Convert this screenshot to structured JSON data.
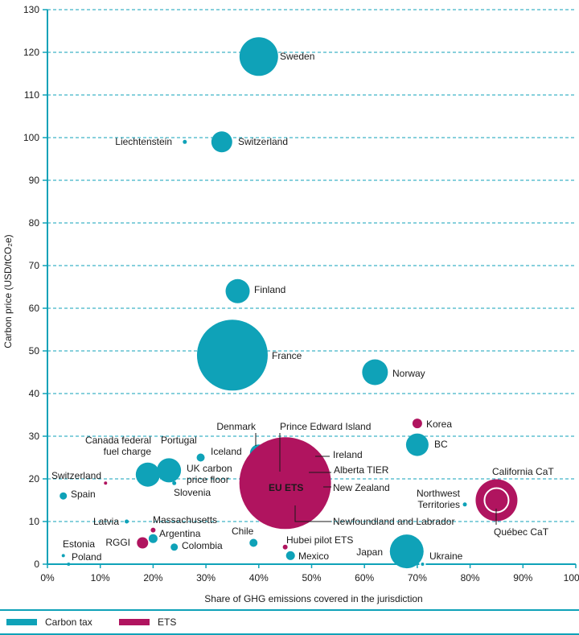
{
  "chart_data": {
    "type": "scatter",
    "xlabel": "Share of GHG emissions covered in the jurisdiction",
    "ylabel": "Carbon price (USD/tCO₂e)",
    "xlim": [
      0,
      100
    ],
    "ylim": [
      0,
      130
    ],
    "x_ticks": [
      "0%",
      "10%",
      "20%",
      "30%",
      "40%",
      "50%",
      "60%",
      "70%",
      "80%",
      "90%",
      "100%"
    ],
    "y_ticks": [
      "0",
      "10",
      "20",
      "30",
      "40",
      "50",
      "60",
      "70",
      "80",
      "90",
      "100",
      "110",
      "120",
      "130"
    ],
    "grid": "horizontal dashed",
    "legend": "bottom",
    "colors": {
      "carbon_tax": "#0fa2b8",
      "ets": "#b0145f",
      "axis": "#0fa2b8"
    },
    "series": [
      {
        "name": "Carbon tax",
        "points": [
          {
            "label": "Sweden",
            "x": 40,
            "y": 119
          },
          {
            "label": "Liechtenstein",
            "x": 26,
            "y": 99
          },
          {
            "label": "Switzerland",
            "x": 33,
            "y": 99
          },
          {
            "label": "Finland",
            "x": 36,
            "y": 64
          },
          {
            "label": "France",
            "x": 35,
            "y": 49
          },
          {
            "label": "Norway",
            "x": 62,
            "y": 45
          },
          {
            "label": "BC",
            "x": 70,
            "y": 28
          },
          {
            "label": "Denmark",
            "x": 40,
            "y": 26
          },
          {
            "label": "Prince Edward Island",
            "x": 44,
            "y": 21
          },
          {
            "label": "Portugal",
            "x": 29,
            "y": 25
          },
          {
            "label": "Iceland",
            "x": 29,
            "y": 25
          },
          {
            "label": "Canada federal fuel charge",
            "x": 19,
            "y": 21
          },
          {
            "label": "UK carbon price floor",
            "x": 23,
            "y": 22
          },
          {
            "label": "Slovenia",
            "x": 24,
            "y": 19
          },
          {
            "label": "Ireland",
            "x": 49,
            "y": 25
          },
          {
            "label": "Alberta TIER",
            "x": 48,
            "y": 21
          },
          {
            "label": "New Zealand",
            "x": 51,
            "y": 14
          },
          {
            "label": "Newfoundland and Labrador",
            "x": 47,
            "y": 14
          },
          {
            "label": "Northwest Territories",
            "x": 79,
            "y": 14
          },
          {
            "label": "Spain",
            "x": 3,
            "y": 16
          },
          {
            "label": "Latvia",
            "x": 15,
            "y": 10
          },
          {
            "label": "Argentina",
            "x": 20,
            "y": 6
          },
          {
            "label": "Colombia",
            "x": 24,
            "y": 4
          },
          {
            "label": "Chile",
            "x": 39,
            "y": 5
          },
          {
            "label": "Mexico",
            "x": 46,
            "y": 2
          },
          {
            "label": "Estonia",
            "x": 3,
            "y": 2
          },
          {
            "label": "Poland",
            "x": 4,
            "y": 0
          },
          {
            "label": "Japan",
            "x": 68,
            "y": 3
          },
          {
            "label": "Ukraine",
            "x": 71,
            "y": 0
          }
        ]
      },
      {
        "name": "ETS",
        "points": [
          {
            "label": "EU ETS",
            "x": 45,
            "y": 19
          },
          {
            "label": "Korea",
            "x": 70,
            "y": 33
          },
          {
            "label": "California CaT",
            "x": 85,
            "y": 15
          },
          {
            "label": "Québec CaT",
            "x": 85,
            "y": 15
          },
          {
            "label": "Switzerland",
            "x": 11,
            "y": 19
          },
          {
            "label": "Massachusetts",
            "x": 20,
            "y": 8
          },
          {
            "label": "RGGI",
            "x": 18,
            "y": 5
          },
          {
            "label": "Hubei pilot ETS",
            "x": 45,
            "y": 4
          }
        ]
      }
    ]
  },
  "legend": {
    "carbon_tax": "Carbon tax",
    "ets": "ETS"
  }
}
